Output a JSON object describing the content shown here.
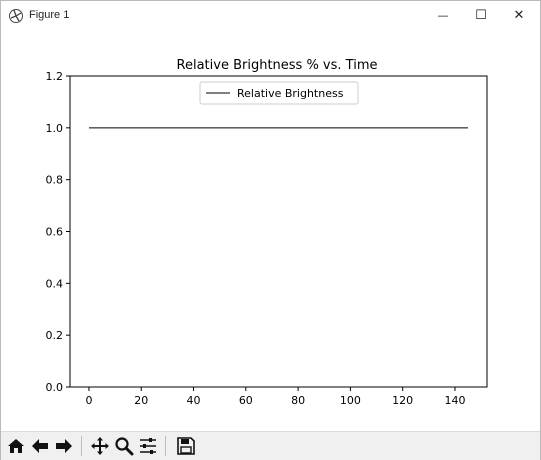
{
  "window": {
    "title": "Figure 1",
    "min_glyph": "—",
    "max_glyph": "☐",
    "close_glyph": "✕"
  },
  "toolbar": {
    "buttons": [
      {
        "name": "home-icon"
      },
      {
        "name": "back-arrow-icon"
      },
      {
        "name": "forward-arrow-icon"
      },
      {
        "name": "pan-icon"
      },
      {
        "name": "zoom-icon"
      },
      {
        "name": "configure-subplots-icon"
      },
      {
        "name": "save-icon"
      }
    ]
  },
  "chart_data": {
    "type": "line",
    "title": "Relative Brightness % vs. Time",
    "xlabel": "",
    "ylabel": "",
    "xlim": [
      -7.25,
      152.25
    ],
    "ylim": [
      0.0,
      1.2
    ],
    "xticks": [
      0,
      20,
      40,
      60,
      80,
      100,
      120,
      140
    ],
    "yticks": [
      0.0,
      0.2,
      0.4,
      0.6,
      0.8,
      1.0,
      1.2
    ],
    "xtick_labels": [
      "0",
      "20",
      "40",
      "60",
      "80",
      "100",
      "120",
      "140"
    ],
    "ytick_labels": [
      "0.0",
      "0.2",
      "0.4",
      "0.6",
      "0.8",
      "1.0",
      "1.2"
    ],
    "legend_position": "top-center",
    "grid": false,
    "series": [
      {
        "name": "Relative Brightness",
        "color": "#000000",
        "x": [
          0,
          145
        ],
        "y": [
          1.0,
          1.0
        ]
      }
    ]
  }
}
